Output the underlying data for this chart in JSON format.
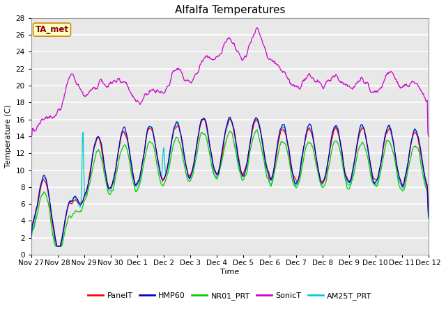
{
  "title": "Alfalfa Temperatures",
  "ylabel": "Temperature (C)",
  "xlabel": "Time",
  "annotation": "TA_met",
  "ylim": [
    0,
    28
  ],
  "series_colors": {
    "PanelT": "#ff0000",
    "HMP60": "#0000cc",
    "NR01_PRT": "#00cc00",
    "SonicT": "#cc00cc",
    "AM25T_PRT": "#00cccc"
  },
  "x_tick_labels": [
    "Nov 27",
    "Nov 28",
    "Nov 29",
    "Nov 30",
    "Dec 1",
    "Dec 2",
    "Dec 3",
    "Dec 4",
    "Dec 5",
    "Dec 6",
    "Dec 7",
    "Dec 8",
    "Dec 9",
    "Dec 10",
    "Dec 11",
    "Dec 12"
  ],
  "background_color": "#ffffff",
  "plot_bg_color": "#e8e8e8",
  "grid_color": "#ffffff",
  "title_fontsize": 11,
  "label_fontsize": 8,
  "tick_fontsize": 7.5
}
